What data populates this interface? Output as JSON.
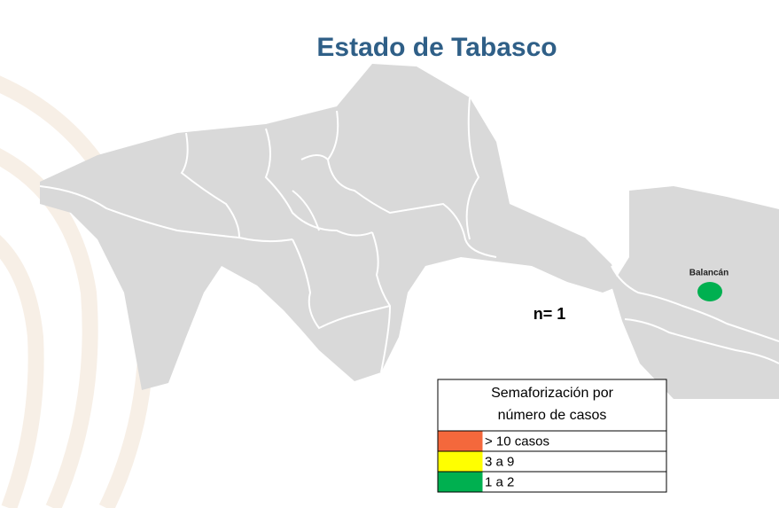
{
  "title": "Estado de Tabasco",
  "marker": {
    "label": "Balancán",
    "color": "#00b050"
  },
  "count_label": "n= 1",
  "legend": {
    "title": [
      "Semaforización por",
      "número de casos"
    ],
    "items": [
      {
        "label": "> 10 casos",
        "color": "#f4683c"
      },
      {
        "label": "3 a 9",
        "color": "#ffff00"
      },
      {
        "label": "1 a 2",
        "color": "#00b050"
      }
    ]
  }
}
